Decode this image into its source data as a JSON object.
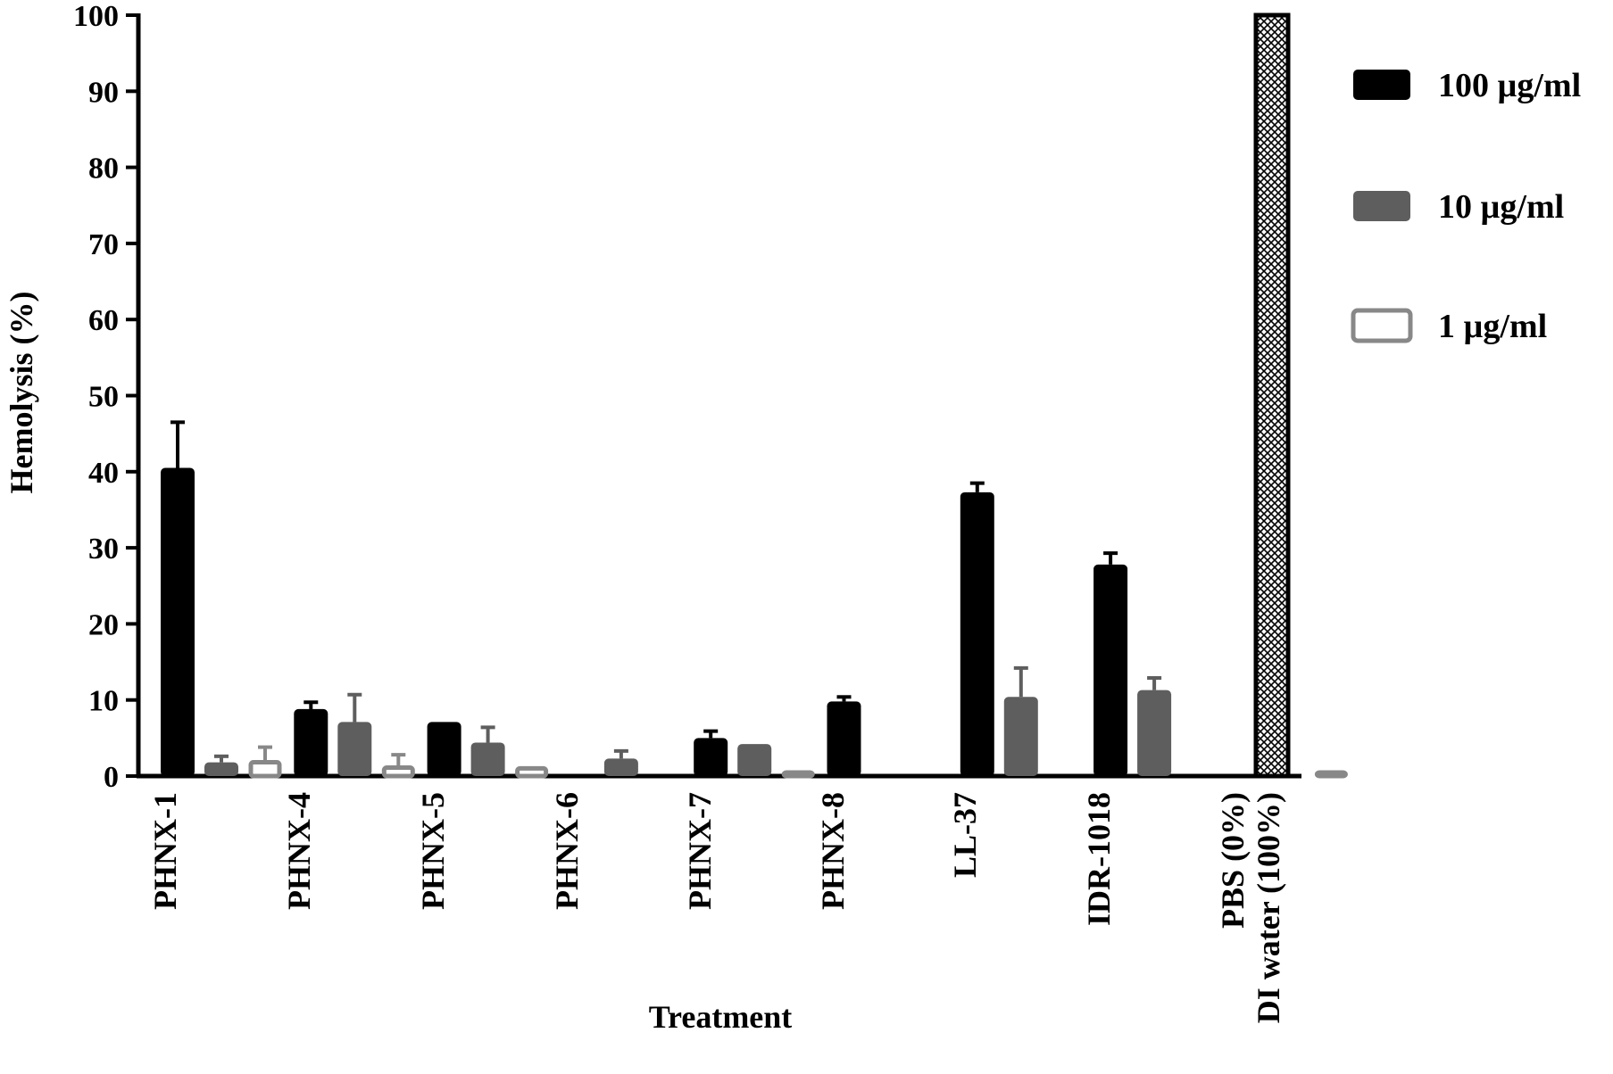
{
  "chart_data": {
    "type": "bar",
    "xlabel": "Treatment",
    "ylabel": "Hemolysis (%)",
    "ylim": [
      0,
      100
    ],
    "yticks": [
      "0",
      "10",
      "20",
      "30",
      "40",
      "50",
      "60",
      "70",
      "80",
      "90",
      "100"
    ],
    "grid": false,
    "legend_position": "top-right",
    "categories": [
      "PHNX-1",
      "PHNX-4",
      "PHNX-5",
      "PHNX-6",
      "PHNX-7",
      "PHNX-8",
      "LL-37",
      "IDR-1018",
      "PBS (0%)",
      "DI water (100%)"
    ],
    "series": [
      {
        "name": "100 µg/ml",
        "fill": "#000000",
        "values": [
          40.5,
          8.8,
          7.1,
          null,
          5.0,
          9.8,
          37.3,
          27.8,
          null,
          null
        ],
        "errors": [
          6.0,
          0.9,
          0.0,
          null,
          0.9,
          0.6,
          1.2,
          1.5,
          null,
          null
        ]
      },
      {
        "name": "10 µg/ml",
        "fill": "#5e5e5e",
        "values": [
          1.8,
          7.1,
          4.4,
          2.3,
          4.2,
          null,
          10.4,
          11.3,
          null,
          null
        ],
        "errors": [
          0.8,
          3.6,
          2.0,
          1.0,
          0.0,
          null,
          3.8,
          1.6,
          null,
          null
        ]
      },
      {
        "name": "1 µg/ml",
        "fill": "#ffffff",
        "stroke": "#888888",
        "values": [
          1.7,
          1.0,
          0.9,
          null,
          0.2,
          null,
          null,
          null,
          0.0,
          null
        ],
        "errors": [
          2.1,
          1.8,
          0.0,
          null,
          0.0,
          null,
          null,
          null,
          null,
          null
        ]
      }
    ],
    "controls": [
      {
        "category": "DI water (100%)",
        "value": 100,
        "pattern": "crosshatch"
      }
    ]
  }
}
